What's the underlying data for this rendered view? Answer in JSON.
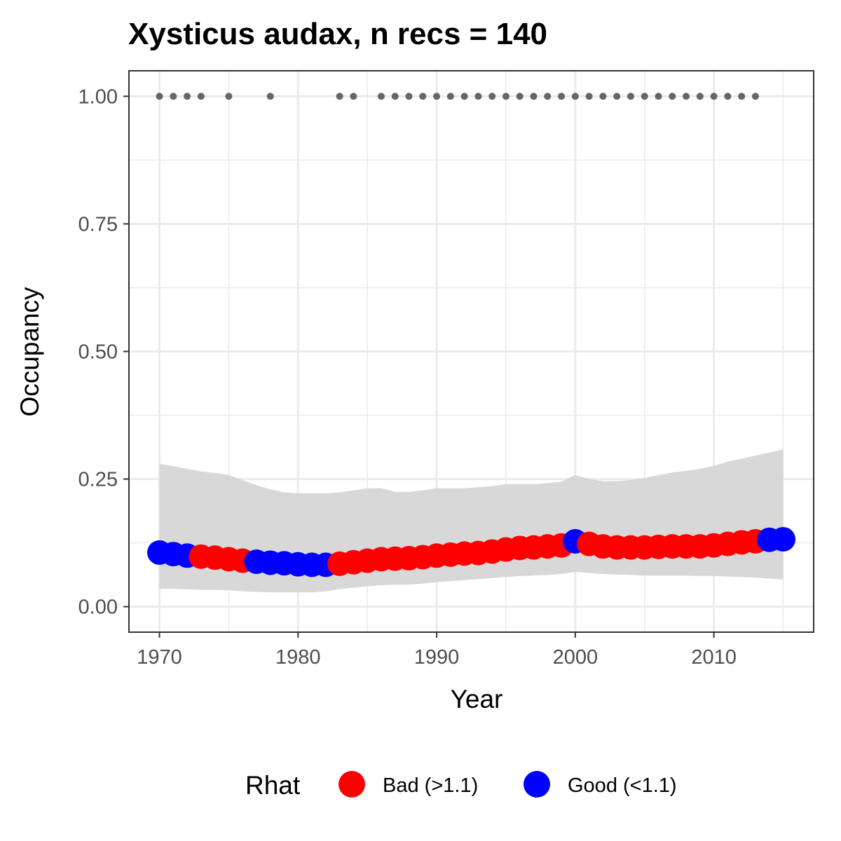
{
  "chart_data": {
    "type": "line",
    "title": "Xysticus audax, n recs = 140",
    "xlabel": "Year",
    "ylabel": "Occupancy",
    "xlim": [
      1967.8,
      2017.2
    ],
    "ylim": [
      -0.05,
      1.05
    ],
    "x_ticks": [
      1970,
      1980,
      1990,
      2000,
      2010
    ],
    "x_tick_labels": [
      "1970",
      "1980",
      "1990",
      "2000",
      "2010"
    ],
    "y_ticks": [
      0,
      0.25,
      0.5,
      0.75,
      1.0
    ],
    "y_tick_labels": [
      "0.00",
      "0.25",
      "0.50",
      "0.75",
      "1.00"
    ],
    "grid": true,
    "legend": {
      "title": "Rhat",
      "position": "bottom",
      "entries": [
        {
          "key": "bad",
          "label": "Bad (>1.1)",
          "color": "#ff0000"
        },
        {
          "key": "good",
          "label": "Good (<1.1)",
          "color": "#0000ff"
        }
      ]
    },
    "colors": {
      "bad": "#ff0000",
      "good": "#0000ff",
      "ribbon": "#d6d6d6",
      "records": "#666666",
      "grid": "#ebebeb",
      "panel_border": "#333333"
    },
    "series": [
      {
        "kind": "points",
        "x": [
          1970,
          1971,
          1972,
          1973,
          1974,
          1975,
          1976,
          1977,
          1978,
          1979,
          1980,
          1981,
          1982,
          1983,
          1984,
          1985,
          1986,
          1987,
          1988,
          1989,
          1990,
          1991,
          1992,
          1993,
          1994,
          1995,
          1996,
          1997,
          1998,
          1999,
          2000,
          2001,
          2002,
          2003,
          2004,
          2005,
          2006,
          2007,
          2008,
          2009,
          2010,
          2011,
          2012,
          2013,
          2014,
          2015
        ],
        "y": [
          0.106,
          0.103,
          0.1,
          0.098,
          0.096,
          0.093,
          0.09,
          0.088,
          0.086,
          0.085,
          0.083,
          0.082,
          0.082,
          0.084,
          0.087,
          0.09,
          0.093,
          0.094,
          0.095,
          0.097,
          0.1,
          0.102,
          0.104,
          0.105,
          0.108,
          0.112,
          0.115,
          0.116,
          0.118,
          0.12,
          0.128,
          0.123,
          0.118,
          0.116,
          0.116,
          0.116,
          0.117,
          0.118,
          0.118,
          0.118,
          0.12,
          0.123,
          0.126,
          0.128,
          0.131,
          0.132
        ],
        "rhat": [
          "good",
          "good",
          "good",
          "bad",
          "bad",
          "bad",
          "bad",
          "good",
          "good",
          "good",
          "good",
          "good",
          "good",
          "bad",
          "bad",
          "bad",
          "bad",
          "bad",
          "bad",
          "bad",
          "bad",
          "bad",
          "bad",
          "bad",
          "bad",
          "bad",
          "bad",
          "bad",
          "bad",
          "bad",
          "good",
          "bad",
          "bad",
          "bad",
          "bad",
          "bad",
          "bad",
          "bad",
          "bad",
          "bad",
          "bad",
          "bad",
          "bad",
          "bad",
          "good",
          "good"
        ]
      },
      {
        "kind": "ribbon",
        "x": [
          1970,
          1971,
          1972,
          1973,
          1974,
          1975,
          1976,
          1977,
          1978,
          1979,
          1980,
          1981,
          1982,
          1983,
          1984,
          1985,
          1986,
          1987,
          1988,
          1989,
          1990,
          1991,
          1992,
          1993,
          1994,
          1995,
          1996,
          1997,
          1998,
          1999,
          2000,
          2001,
          2002,
          2003,
          2004,
          2005,
          2006,
          2007,
          2008,
          2009,
          2010,
          2011,
          2012,
          2013,
          2014,
          2015
        ],
        "lower": [
          0.035,
          0.035,
          0.034,
          0.033,
          0.033,
          0.032,
          0.03,
          0.029,
          0.028,
          0.028,
          0.028,
          0.028,
          0.03,
          0.034,
          0.037,
          0.04,
          0.042,
          0.043,
          0.043,
          0.045,
          0.048,
          0.05,
          0.052,
          0.054,
          0.056,
          0.058,
          0.06,
          0.061,
          0.062,
          0.064,
          0.068,
          0.066,
          0.064,
          0.063,
          0.062,
          0.061,
          0.061,
          0.061,
          0.061,
          0.06,
          0.06,
          0.059,
          0.058,
          0.057,
          0.055,
          0.053
        ],
        "upper": [
          0.28,
          0.275,
          0.27,
          0.265,
          0.262,
          0.258,
          0.248,
          0.238,
          0.23,
          0.224,
          0.222,
          0.222,
          0.222,
          0.224,
          0.228,
          0.232,
          0.232,
          0.225,
          0.225,
          0.228,
          0.232,
          0.232,
          0.232,
          0.234,
          0.236,
          0.24,
          0.24,
          0.24,
          0.242,
          0.245,
          0.258,
          0.25,
          0.246,
          0.246,
          0.248,
          0.252,
          0.258,
          0.263,
          0.266,
          0.27,
          0.276,
          0.284,
          0.29,
          0.296,
          0.302,
          0.308
        ]
      },
      {
        "kind": "records",
        "x": [
          1970,
          1971,
          1972,
          1973,
          1975,
          1978,
          1983,
          1984,
          1986,
          1987,
          1988,
          1989,
          1990,
          1991,
          1992,
          1993,
          1994,
          1995,
          1996,
          1997,
          1998,
          1999,
          2000,
          2001,
          2002,
          2003,
          2004,
          2005,
          2006,
          2007,
          2008,
          2009,
          2010,
          2011,
          2012,
          2013
        ],
        "y": 1.0
      }
    ]
  }
}
